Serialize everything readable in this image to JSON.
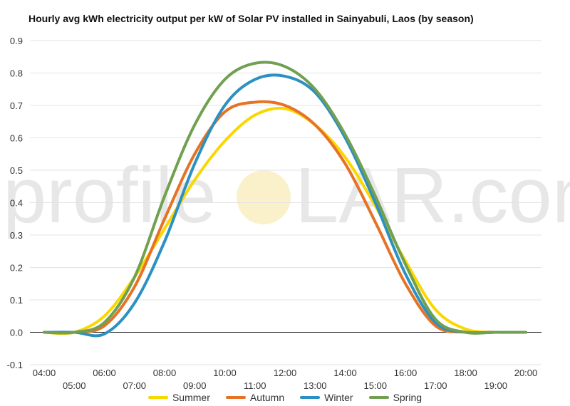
{
  "chart_data": {
    "type": "line",
    "title": "Hourly avg kWh electricity output per kW of Solar PV installed in Sainyabuli, Laos (by season)",
    "xlabel": "",
    "ylabel": "",
    "ylim": [
      -0.1,
      0.9
    ],
    "yticks": [
      "-0.1",
      "0.0",
      "0.1",
      "0.2",
      "0.3",
      "0.4",
      "0.5",
      "0.6",
      "0.7",
      "0.8",
      "0.9"
    ],
    "xlim": [
      4,
      20
    ],
    "xticks_upper": [
      "04:00",
      "06:00",
      "08:00",
      "10:00",
      "12:00",
      "14:00",
      "16:00",
      "18:00",
      "20:00"
    ],
    "xticks_lower": [
      "05:00",
      "07:00",
      "09:00",
      "11:00",
      "13:00",
      "15:00",
      "17:00",
      "19:00"
    ],
    "x": [
      4,
      5,
      6,
      7,
      8,
      9,
      10,
      11,
      12,
      13,
      14,
      15,
      16,
      17,
      18,
      19,
      20
    ],
    "grid": true,
    "legend": "bottom",
    "series": [
      {
        "name": "Summer",
        "color": "#f9d700",
        "values": [
          0.0,
          0.0,
          0.05,
          0.17,
          0.32,
          0.47,
          0.59,
          0.67,
          0.69,
          0.64,
          0.54,
          0.39,
          0.22,
          0.07,
          0.01,
          0.0,
          0.0
        ]
      },
      {
        "name": "Autumn",
        "color": "#e67325",
        "values": [
          0.0,
          0.0,
          0.02,
          0.14,
          0.35,
          0.55,
          0.68,
          0.71,
          0.7,
          0.64,
          0.52,
          0.34,
          0.15,
          0.02,
          0.0,
          0.0,
          0.0
        ]
      },
      {
        "name": "Winter",
        "color": "#2b90c2",
        "values": [
          0.0,
          0.0,
          -0.005,
          0.09,
          0.28,
          0.52,
          0.7,
          0.78,
          0.79,
          0.74,
          0.6,
          0.4,
          0.18,
          0.03,
          0.0,
          0.0,
          0.0
        ]
      },
      {
        "name": "Spring",
        "color": "#70a050",
        "values": [
          0.0,
          0.0,
          0.03,
          0.17,
          0.42,
          0.64,
          0.78,
          0.83,
          0.82,
          0.75,
          0.61,
          0.42,
          0.21,
          0.04,
          0.0,
          0.0,
          0.0
        ]
      }
    ]
  },
  "watermark": {
    "left": "profile",
    "right": "LAR.com"
  }
}
